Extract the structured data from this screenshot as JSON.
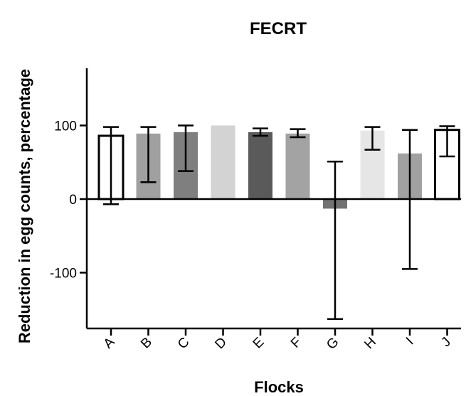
{
  "chart_data": {
    "type": "bar",
    "title": "FECRT",
    "xlabel": "Flocks",
    "ylabel": "Reduction in egg counts, percentage",
    "categories": [
      "A",
      "B",
      "C",
      "D",
      "E",
      "F",
      "G",
      "H",
      "I",
      "J"
    ],
    "values": [
      86,
      89,
      91,
      100,
      91,
      89,
      -13,
      93,
      62,
      94
    ],
    "error_upper": [
      98,
      98,
      100,
      100,
      96,
      95,
      51,
      98,
      94,
      99
    ],
    "error_lower": [
      -7,
      23,
      38,
      100,
      86,
      84,
      -163,
      67,
      -95,
      58
    ],
    "ylim": [
      -175,
      175
    ],
    "yticks": [
      -100,
      0,
      100
    ],
    "grid": false,
    "colors": {
      "A": "#ffffff",
      "B": "#a0a0a0",
      "C": "#7f7f7f",
      "D": "#d3d3d3",
      "E": "#5a5a5a",
      "F": "#a3a3a3",
      "G": "#727272",
      "H": "#e6e6e6",
      "I": "#a1a1a1",
      "J": "#ffffff"
    },
    "outlined": [
      "A",
      "J"
    ]
  }
}
